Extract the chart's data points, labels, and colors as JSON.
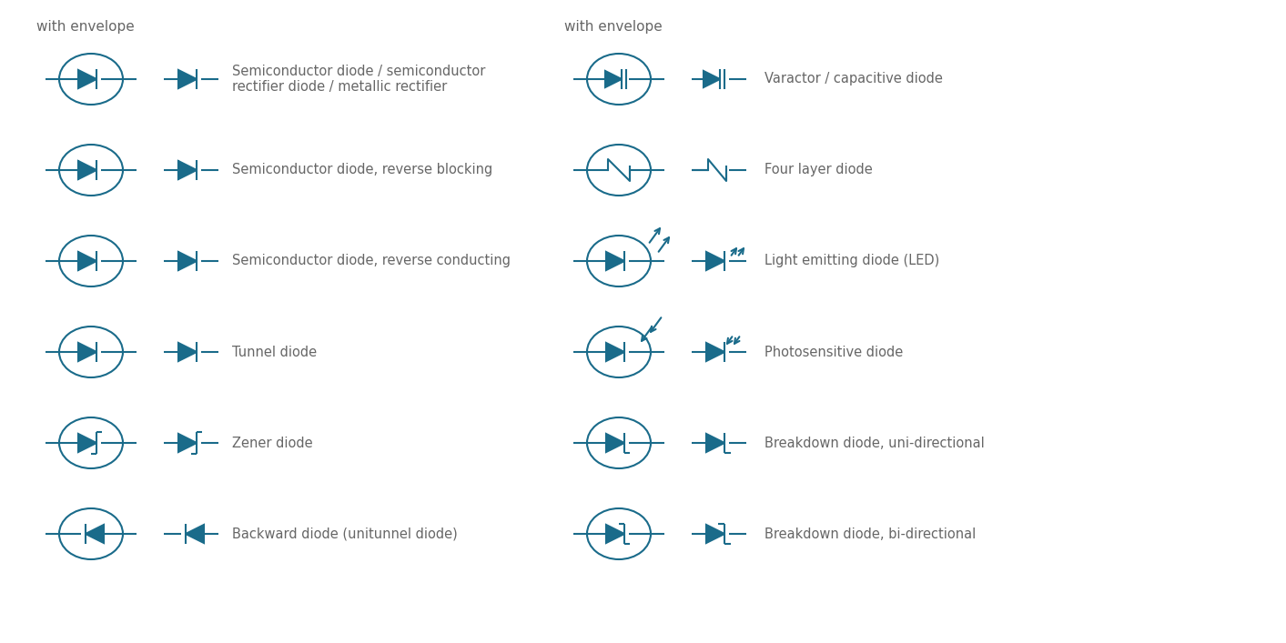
{
  "bg_color": "#ffffff",
  "symbol_color": "#1a6b8a",
  "text_color": "#666666",
  "title_color": "#1a6b8a",
  "font_family": "DejaVu Sans",
  "left_header": "with envelope",
  "right_header": "with envelope",
  "left_rows": [
    {
      "label": "Semiconductor diode / semiconductor\nrectifier diode / metallic rectifier",
      "symbol_type": "diode_standard"
    },
    {
      "label": "Semiconductor diode, reverse blocking",
      "symbol_type": "diode_reverse_blocking"
    },
    {
      "label": "Semiconductor diode, reverse conducting",
      "symbol_type": "diode_reverse_conducting"
    },
    {
      "label": "Tunnel diode",
      "symbol_type": "diode_tunnel"
    },
    {
      "label": "Zener diode",
      "symbol_type": "diode_zener"
    },
    {
      "label": "Backward diode (unitunnel diode)",
      "symbol_type": "diode_backward"
    }
  ],
  "right_rows": [
    {
      "label": "Varactor / capacitive diode",
      "symbol_type": "diode_varactor"
    },
    {
      "label": "Four layer diode",
      "symbol_type": "diode_four_layer"
    },
    {
      "label": "Light emitting diode (LED)",
      "symbol_type": "diode_led"
    },
    {
      "label": "Photosensitive diode",
      "symbol_type": "diode_photo"
    },
    {
      "label": "Breakdown diode, uni-directional",
      "symbol_type": "diode_breakdown_uni"
    },
    {
      "label": "Breakdown diode, bi-directional",
      "symbol_type": "diode_breakdown_bi"
    }
  ]
}
